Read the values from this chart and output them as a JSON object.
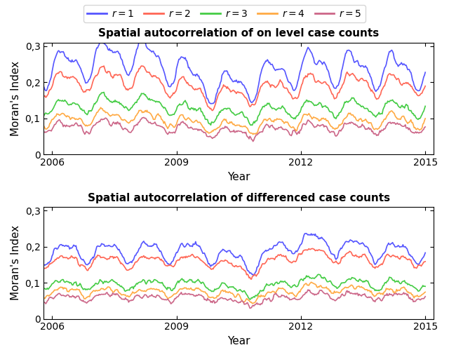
{
  "title1": "Spatial autocorrelation of on level case counts",
  "title2": "Spatial autocorrelation of differenced case counts",
  "xlabel": "Year",
  "ylabel": "Moran's Index",
  "legend_labels": [
    "$r = 1$",
    "$r = 2$",
    "$r = 3$",
    "$r = 4$",
    "$r = 5$"
  ],
  "colors": [
    "#5555ff",
    "#ff6655",
    "#44cc44",
    "#ffaa44",
    "#cc6688"
  ],
  "ylim": [
    0,
    0.31
  ],
  "yticks": [
    0,
    0.1,
    0.2,
    0.3
  ],
  "ytick_labels": [
    "0",
    "0,1",
    "0,2",
    "0,3"
  ],
  "xticks": [
    2006,
    2009,
    2012,
    2015
  ],
  "xmin": 2005.8,
  "xmax": 2015.2,
  "n_weeks": 521,
  "year_start": 2005.0,
  "seed": 42,
  "plot1_base": [
    0.235,
    0.195,
    0.13,
    0.095,
    0.075
  ],
  "plot2_base": [
    0.185,
    0.16,
    0.095,
    0.075,
    0.06
  ],
  "linewidth": 1.2,
  "figsize": [
    6.4,
    5.09
  ],
  "dpi": 100,
  "title_fontsize": 11,
  "axis_label_fontsize": 11,
  "tick_fontsize": 10,
  "legend_fontsize": 10
}
